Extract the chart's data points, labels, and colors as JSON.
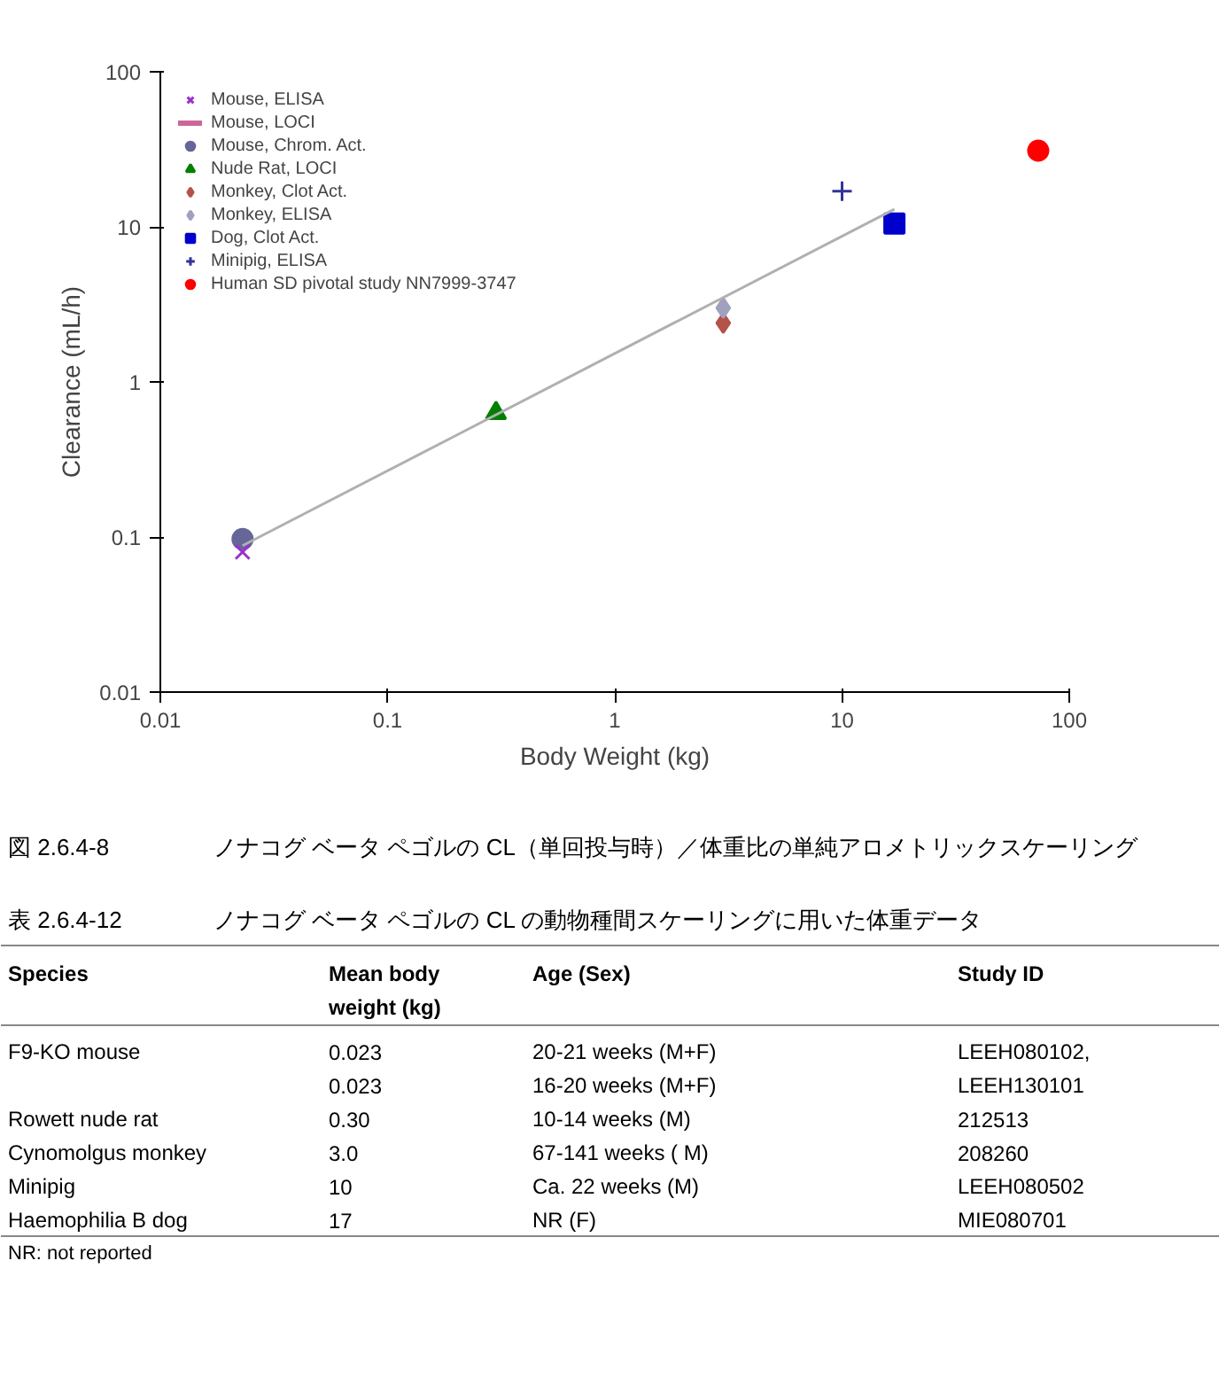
{
  "chart_data": [
    {
      "type": "scatter",
      "xlabel": "Body Weight (kg)",
      "ylabel": "Clearance (mL/h)",
      "log": "xy",
      "xlim": [
        0.01,
        100
      ],
      "ylim": [
        0.01,
        100
      ],
      "xticks": [
        0.01,
        0.1,
        1,
        10,
        100
      ],
      "yticks": [
        0.01,
        0.1,
        1,
        10,
        100
      ],
      "grid": false,
      "legend": "top left",
      "series": [
        {
          "name": "Mouse, ELISA",
          "color": "#9933cc",
          "marker": "x",
          "x": [
            0.023
          ],
          "values": [
            0.08
          ]
        },
        {
          "name": "Mouse, LOCI",
          "color": "#cc6699",
          "marker": "dash"
        },
        {
          "name": "Mouse, Chrom. Act.",
          "color": "#666699",
          "marker": "circle",
          "x": [
            0.023
          ],
          "values": [
            0.097
          ]
        },
        {
          "name": "Nude Rat, LOCI",
          "color": "#008000",
          "marker": "triangle",
          "x": [
            0.3
          ],
          "values": [
            0.63
          ]
        },
        {
          "name": "Monkey, Clot Act.",
          "color": "#b5524a",
          "marker": "diamond",
          "x": [
            3.0
          ],
          "values": [
            2.4
          ]
        },
        {
          "name": "Monkey, ELISA",
          "color": "#a0a0c0",
          "marker": "diamond",
          "x": [
            3.0
          ],
          "values": [
            3.0
          ]
        },
        {
          "name": "Dog, Clot Act.",
          "color": "#0000cc",
          "marker": "square",
          "x": [
            17
          ],
          "values": [
            10.5
          ]
        },
        {
          "name": "Minipig, ELISA",
          "color": "#333399",
          "marker": "cross",
          "x": [
            10
          ],
          "values": [
            17
          ]
        },
        {
          "name": "Human SD pivotal study NN7999-3747",
          "color": "#ff0000",
          "marker": "circle",
          "x": [
            73
          ],
          "values": [
            31
          ]
        },
        {
          "type": "line",
          "color": "#b0b0b0",
          "x": [
            0.023,
            17
          ],
          "values": [
            0.088,
            13
          ]
        }
      ]
    },
    {
      "type": "other",
      "annotations": [
        "図 2.6.4-8\tノナコグ ベータ ペゴルの CL（単回投与時）／体重比の単純アロメトリックスケーリング",
        "表 2.6.4-12\tノナコグ ベータ ペゴルの CL の動物種間スケーリングに用いた体重データ",
        "Species",
        "Mean body weight (kg)",
        "Age (Sex)",
        "Study ID",
        "F9-KO mouse",
        "0.023\n0.023",
        "20-21 weeks (M+F)\n16-20 weeks (M+F)",
        "LEEH080102,\nLEEH130101",
        "Rowett nude rat",
        "0.30",
        "10-14 weeks (M)",
        "212513",
        "Cynomolgus monkey",
        "3.0",
        "67-141 weeks ( M)",
        "208260",
        "Minipig",
        "10",
        "Ca. 22 weeks (M)",
        "LEEH080502",
        "Haemophilia B dog",
        "17",
        "NR (F)",
        "MIE080701",
        "NR: not reported"
      ]
    }
  ]
}
